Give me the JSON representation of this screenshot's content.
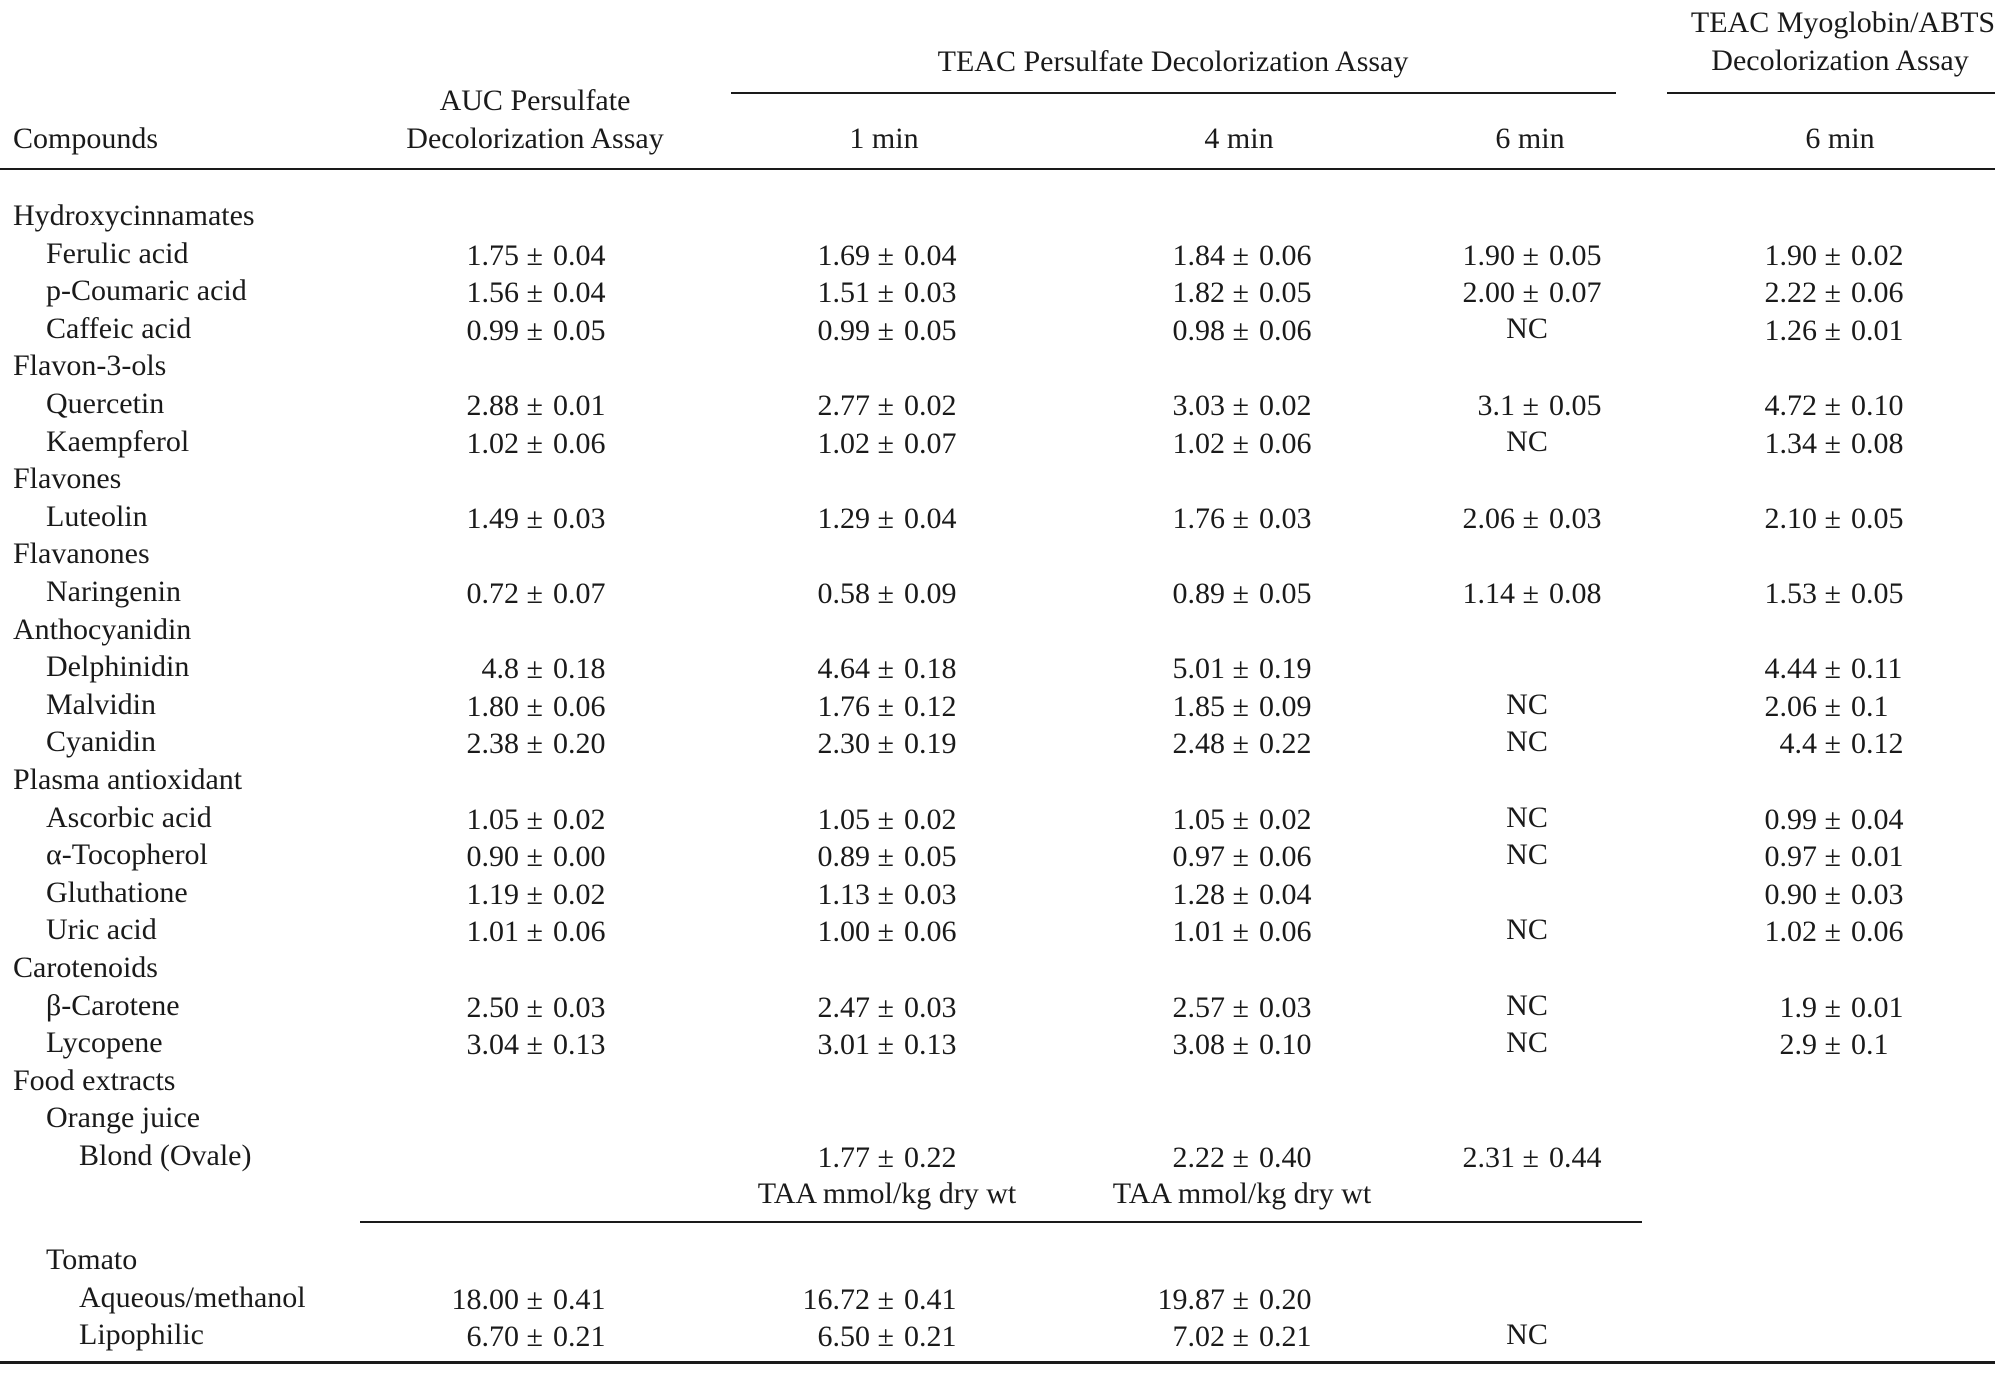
{
  "header": {
    "compounds": "Compounds",
    "auc_line1": "AUC Persulfate",
    "auc_line2": "Decolorization Assay",
    "teac_persulfate": "TEAC Persulfate Decolorization Assay",
    "teac_myo_line1": "TEAC Myoglobin/ABTS",
    "teac_myo_line2": "Decolorization Assay",
    "col_1min": "1 min",
    "col_4min": "4 min",
    "col_6min": "6 min",
    "col_myo_6min": "6 min"
  },
  "rows": [
    {
      "label": "Hydroxycinnamates",
      "level": 0,
      "values": [
        "",
        "",
        "",
        "",
        ""
      ]
    },
    {
      "label": "Ferulic acid",
      "level": 1,
      "values": [
        "1.75 ± 0.04",
        "1.69 ± 0.04",
        "1.84 ± 0.06",
        "1.90 ± 0.05",
        "1.90 ± 0.02"
      ]
    },
    {
      "label": "p-Coumaric acid",
      "level": 1,
      "values": [
        "1.56 ± 0.04",
        "1.51 ± 0.03",
        "1.82 ± 0.05",
        "2.00 ± 0.07",
        "2.22 ± 0.06"
      ]
    },
    {
      "label": "Caffeic acid",
      "level": 1,
      "values": [
        "0.99 ± 0.05",
        "0.99 ± 0.05",
        "0.98 ± 0.06",
        "NC",
        "1.26 ± 0.01"
      ]
    },
    {
      "label": "Flavon-3-ols",
      "level": 0,
      "values": [
        "",
        "",
        "",
        "",
        ""
      ]
    },
    {
      "label": "Quercetin",
      "level": 1,
      "values": [
        "2.88 ± 0.01",
        "2.77 ± 0.02",
        "3.03 ± 0.02",
        "3.1 ± 0.05",
        "4.72 ± 0.10"
      ]
    },
    {
      "label": "Kaempferol",
      "level": 1,
      "values": [
        "1.02 ± 0.06",
        "1.02 ± 0.07",
        "1.02 ± 0.06",
        "NC",
        "1.34 ± 0.08"
      ]
    },
    {
      "label": "Flavones",
      "level": 0,
      "values": [
        "",
        "",
        "",
        "",
        ""
      ]
    },
    {
      "label": "Luteolin",
      "level": 1,
      "values": [
        "1.49 ± 0.03",
        "1.29 ± 0.04",
        "1.76 ± 0.03",
        "2.06 ± 0.03",
        "2.10 ± 0.05"
      ]
    },
    {
      "label": "Flavanones",
      "level": 0,
      "values": [
        "",
        "",
        "",
        "",
        ""
      ]
    },
    {
      "label": "Naringenin",
      "level": 1,
      "values": [
        "0.72 ± 0.07",
        "0.58 ± 0.09",
        "0.89 ± 0.05",
        "1.14 ± 0.08",
        "1.53 ± 0.05"
      ]
    },
    {
      "label": "Anthocyanidin",
      "level": 0,
      "values": [
        "",
        "",
        "",
        "",
        ""
      ]
    },
    {
      "label": "Delphinidin",
      "level": 1,
      "values": [
        "4.8 ± 0.18",
        "4.64 ± 0.18",
        "5.01 ± 0.19",
        "",
        "4.44 ± 0.11"
      ]
    },
    {
      "label": "Malvidin",
      "level": 1,
      "values": [
        "1.80 ± 0.06",
        "1.76 ± 0.12",
        "1.85 ± 0.09",
        "NC",
        "2.06 ± 0.1"
      ]
    },
    {
      "label": "Cyanidin",
      "level": 1,
      "values": [
        "2.38 ± 0.20",
        "2.30 ± 0.19",
        "2.48 ± 0.22",
        "NC",
        "4.4 ± 0.12"
      ]
    },
    {
      "label": "Plasma antioxidant",
      "level": 0,
      "values": [
        "",
        "",
        "",
        "",
        ""
      ]
    },
    {
      "label": "Ascorbic acid",
      "level": 1,
      "values": [
        "1.05 ± 0.02",
        "1.05 ± 0.02",
        "1.05 ± 0.02",
        "NC",
        "0.99 ± 0.04"
      ]
    },
    {
      "label": "α-Tocopherol",
      "level": 1,
      "values": [
        "0.90 ± 0.00",
        "0.89 ± 0.05",
        "0.97 ± 0.06",
        "NC",
        "0.97 ± 0.01"
      ]
    },
    {
      "label": "Gluthatione",
      "level": 1,
      "values": [
        "1.19 ± 0.02",
        "1.13 ± 0.03",
        "1.28 ± 0.04",
        "",
        "0.90 ± 0.03"
      ]
    },
    {
      "label": "Uric acid",
      "level": 1,
      "values": [
        "1.01 ± 0.06",
        "1.00 ± 0.06",
        "1.01 ± 0.06",
        "NC",
        "1.02 ± 0.06"
      ]
    },
    {
      "label": "Carotenoids",
      "level": 0,
      "values": [
        "",
        "",
        "",
        "",
        ""
      ]
    },
    {
      "label": "β-Carotene",
      "level": 1,
      "values": [
        "2.50 ± 0.03",
        "2.47 ± 0.03",
        "2.57 ± 0.03",
        "NC",
        "1.9 ± 0.01"
      ]
    },
    {
      "label": "Lycopene",
      "level": 1,
      "values": [
        "3.04 ± 0.13",
        "3.01 ± 0.13",
        "3.08 ± 0.10",
        "NC",
        "2.9 ± 0.1"
      ]
    },
    {
      "label": "Food extracts",
      "level": 0,
      "values": [
        "",
        "",
        "",
        "",
        ""
      ]
    },
    {
      "label": "Orange juice",
      "level": 1,
      "values": [
        "",
        "",
        "",
        "",
        ""
      ]
    },
    {
      "label": "Blond (Ovale)",
      "level": 2,
      "values": [
        "",
        "1.77 ± 0.22",
        "2.22 ± 0.40",
        "2.31 ± 0.44",
        ""
      ]
    },
    {
      "label": "",
      "level": 0,
      "values": [
        "",
        "TAA mmol/kg dry wt",
        "TAA mmol/kg dry wt",
        "",
        ""
      ]
    },
    {
      "label": "Tomato",
      "level": 1,
      "values": [
        "",
        "",
        "",
        "",
        ""
      ]
    },
    {
      "label": "Aqueous/methanol",
      "level": 2,
      "values": [
        "18.00 ± 0.41",
        "16.72 ± 0.41",
        "19.87 ± 0.20",
        "",
        ""
      ]
    },
    {
      "label": "Lipophilic",
      "level": 2,
      "values": [
        "6.70 ± 0.21",
        "6.50 ± 0.21",
        "7.02 ± 0.21",
        "NC",
        ""
      ]
    }
  ]
}
